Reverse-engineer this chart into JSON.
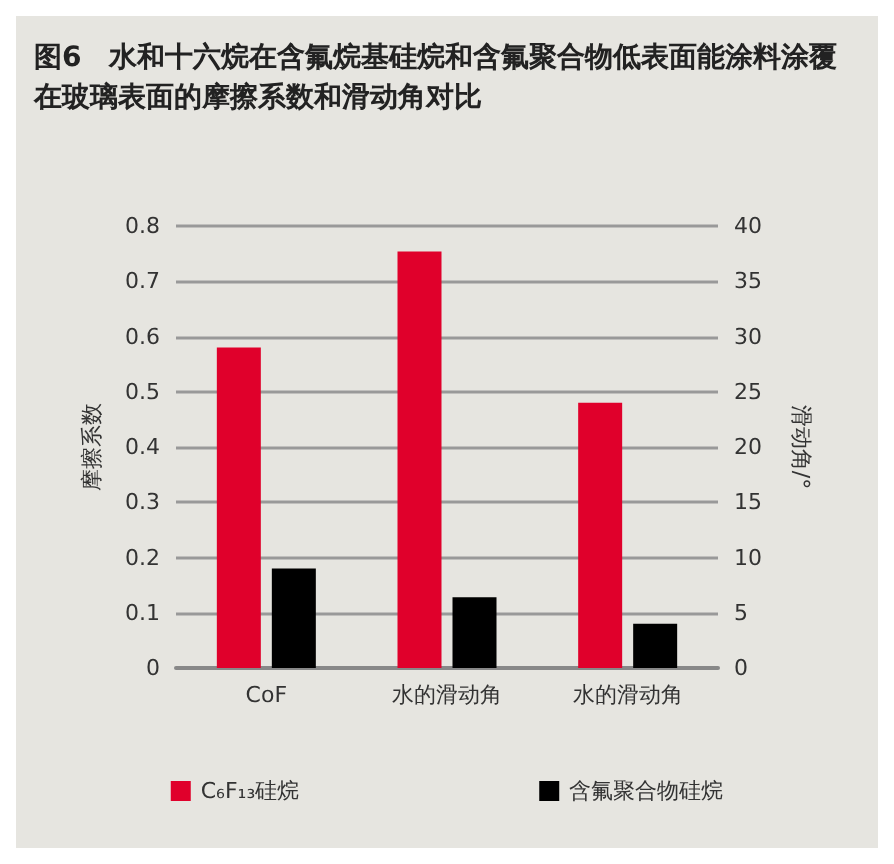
{
  "chart_data": {
    "type": "bar",
    "title": "图6　水和十六烷在含氟烷基硅烷和含氟聚合物低表面能涂料涂覆在玻璃表面的摩擦系数和滑动角对比",
    "categories": [
      "CoF",
      "水的滑动角",
      "水的滑动角"
    ],
    "series": [
      {
        "name": "C₆F₁₃硅烷",
        "color": "#e0002b",
        "values": [
          0.58,
          null,
          null
        ]
      },
      {
        "name": "含氟聚合物硅烷",
        "color": "#000000",
        "values": [
          0.18,
          null,
          null
        ]
      },
      {
        "color": "#e0002b",
        "axis": "y2",
        "values": [
          null,
          37.7,
          24
        ]
      },
      {
        "color": "#000000",
        "axis": "y2",
        "values": [
          null,
          6.4,
          4
        ]
      }
    ],
    "ylabel": "摩擦系数",
    "y2label": "滑动角/°",
    "ylim": [
      0,
      0.8
    ],
    "yticks": [
      0,
      0.1,
      0.2,
      0.3,
      0.4,
      0.5,
      0.6,
      0.7,
      0.8
    ],
    "y2lim": [
      0,
      40
    ],
    "y2ticks": [
      0,
      5,
      10,
      15,
      20,
      25,
      30,
      35,
      40
    ],
    "grid": "y",
    "legend": "bottom"
  }
}
